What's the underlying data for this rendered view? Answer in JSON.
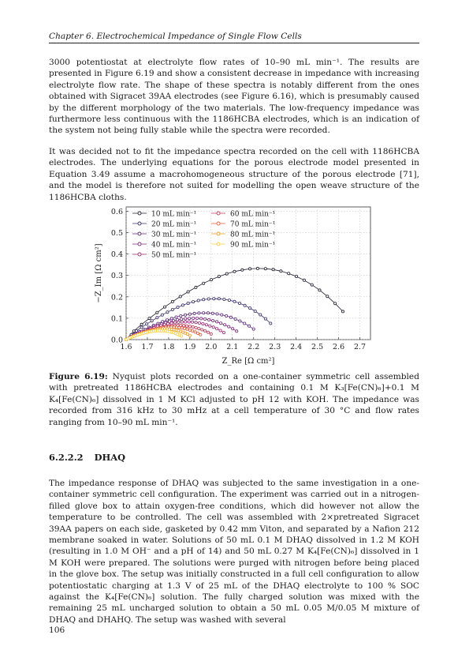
{
  "header": {
    "text": "Chapter 6.  Electrochemical Impedance of Single Flow Cells"
  },
  "paragraphs": {
    "p1": "3000 potentiostat at electrolyte flow rates of 10–90 mL min⁻¹. The results are presented in Figure 6.19 and show a consistent decrease in impedance with increasing electrolyte flow rate. The shape of these spectra is notably different from the ones obtained with Sigracet 39AA electrodes (see Figure 6.16), which is presumably caused by the different morphology of the two materials. The low-frequency impedance was furthermore less continuous with the 1186HCBA electrodes, which is an indication of the system not being fully stable while the spectra were recorded.",
    "p2": "It was decided not to fit the impedance spectra recorded on the cell with 1186HCBA electrodes. The underlying equations for the porous electrode model presented in Equation 3.49 assume a macrohomogeneous structure of the porous electrode [71], and the model is therefore not suited for modelling the open weave structure of the 1186HCBA cloths.",
    "p3": "The impedance response of DHAQ was subjected to the same investigation in a one-container symmetric cell configuration. The experiment was carried out in a nitrogen-filled glove box to attain oxygen-free conditions, which did however not allow the temperature to be controlled. The cell was assembled with 2×pretreated Sigracet 39AA papers on each side, gasketed by 0.42 mm Viton, and separated by a Nafion 212 membrane soaked in water. Solutions of 50 mL 0.1 M DHAQ dissolved in 1.2 M KOH (resulting in 1.0 M OH⁻ and a pH of 14) and 50 mL 0.27 M K₄[Fe(CN)₆] dissolved in 1 M KOH were prepared. The solutions were purged with nitrogen before being placed in the glove box. The setup was initially constructed in a full cell configuration to allow potentiostatic charging at 1.3 V of 25 mL of the DHAQ electrolyte to 100 % SOC against the K₄[Fe(CN)₆] solution. The fully charged solution was mixed with the remaining 25 mL uncharged solution to obtain a 50 mL 0.05 M/0.05 M mixture of DHAQ and DHAHQ. The setup was washed with several"
  },
  "caption": {
    "label": "Figure 6.19:",
    "text": " Nyquist plots recorded on a one-container symmetric cell assembled with pretreated 1186HCBA electrodes and containing 0.1 M K₃[Fe(CN)₆]+0.1 M K₄[Fe(CN)₆] dissolved in 1 M KCl adjusted to pH 12 with KOH. The impedance was recorded from 316 kHz to 30 mHz at a cell temperature of 30 °C and flow rates ranging from 10–90 mL min⁻¹."
  },
  "section": {
    "number": "6.2.2.2",
    "title": "DHAQ"
  },
  "page_number": "106",
  "chart_data": {
    "type": "scatter",
    "xlabel": "Z_Re [Ω cm²]",
    "ylabel": "−Z_Im [Ω cm²]",
    "xlim": [
      1.6,
      2.75
    ],
    "ylim": [
      0.0,
      0.62
    ],
    "x_ticks": [
      "1.6",
      "1.7",
      "1.8",
      "1.9",
      "2.0",
      "2.1",
      "2.2",
      "2.3",
      "2.4",
      "2.5",
      "2.6",
      "2.7"
    ],
    "y_ticks": [
      "0.0",
      "0.1",
      "0.2",
      "0.3",
      "0.4",
      "0.5",
      "0.6"
    ],
    "legend_position": "top-left",
    "grid": true,
    "series": [
      {
        "name": "10 mL min⁻¹",
        "color": "#1f1f2e",
        "x0": 1.6,
        "x1": 2.62,
        "peak": 0.4
      },
      {
        "name": "20 mL min⁻¹",
        "color": "#3b2f6b",
        "x0": 1.6,
        "x1": 2.28,
        "peak": 0.23
      },
      {
        "name": "30 mL min⁻¹",
        "color": "#5a2a7a",
        "x0": 1.6,
        "x1": 2.2,
        "peak": 0.15
      },
      {
        "name": "40 mL min⁻¹",
        "color": "#7a2a7d",
        "x0": 1.6,
        "x1": 2.12,
        "peak": 0.12
      },
      {
        "name": "50 mL min⁻¹",
        "color": "#9c2f78",
        "x0": 1.6,
        "x1": 2.06,
        "peak": 0.1
      },
      {
        "name": "60 mL min⁻¹",
        "color": "#c23a5a",
        "x0": 1.6,
        "x1": 2.0,
        "peak": 0.08
      },
      {
        "name": "70 mL min⁻¹",
        "color": "#e25c3a",
        "x0": 1.6,
        "x1": 1.95,
        "peak": 0.07
      },
      {
        "name": "80 mL min⁻¹",
        "color": "#f29a1f",
        "x0": 1.6,
        "x1": 1.9,
        "peak": 0.06
      },
      {
        "name": "90 mL min⁻¹",
        "color": "#f6d040",
        "x0": 1.6,
        "x1": 1.86,
        "peak": 0.05
      }
    ]
  }
}
